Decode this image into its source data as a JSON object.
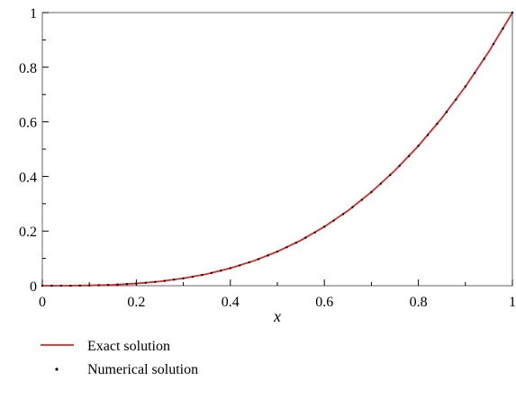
{
  "chart_data": {
    "type": "line",
    "title": "",
    "xlabel": "x",
    "ylabel": "",
    "xlim": [
      0,
      1
    ],
    "ylim": [
      0,
      1
    ],
    "grid": false,
    "legend_position": "bottom-left",
    "x_ticks": [
      "0",
      "0.2",
      "0.4",
      "0.6",
      "0.8",
      "1"
    ],
    "y_ticks": [
      "0",
      "0.2",
      "0.4",
      "0.6",
      "0.8",
      "1"
    ],
    "series": [
      {
        "name": "Exact solution",
        "style": "line",
        "color": "#d62728",
        "x": [
          0,
          0.05,
          0.1,
          0.15,
          0.2,
          0.25,
          0.3,
          0.35,
          0.4,
          0.45,
          0.5,
          0.55,
          0.6,
          0.65,
          0.7,
          0.75,
          0.8,
          0.85,
          0.9,
          0.95,
          1
        ],
        "y": [
          0,
          0.0001,
          0.001,
          0.0034,
          0.008,
          0.0156,
          0.027,
          0.0429,
          0.064,
          0.0911,
          0.125,
          0.1664,
          0.216,
          0.2746,
          0.343,
          0.4219,
          0.512,
          0.6141,
          0.729,
          0.8574,
          1
        ]
      },
      {
        "name": "Numerical solution",
        "style": "points",
        "color": "#000000",
        "x": [
          0,
          0.02,
          0.04,
          0.06,
          0.08,
          0.1,
          0.12,
          0.14,
          0.16,
          0.18,
          0.2,
          0.22,
          0.24,
          0.26,
          0.28,
          0.3,
          0.32,
          0.34,
          0.36,
          0.38,
          0.4,
          0.42,
          0.44,
          0.46,
          0.48,
          0.5,
          0.52,
          0.54,
          0.56,
          0.58,
          0.6,
          0.62,
          0.64,
          0.66,
          0.68,
          0.7,
          0.72,
          0.74,
          0.76,
          0.78,
          0.8,
          0.82,
          0.84,
          0.86,
          0.88,
          0.9,
          0.92,
          0.94,
          0.96,
          0.98,
          1
        ],
        "y": [
          0,
          0.0,
          0.0001,
          0.0002,
          0.0005,
          0.001,
          0.0017,
          0.0027,
          0.0041,
          0.0058,
          0.008,
          0.0106,
          0.0138,
          0.0176,
          0.022,
          0.027,
          0.0328,
          0.0393,
          0.0467,
          0.0549,
          0.064,
          0.0741,
          0.0852,
          0.0973,
          0.1106,
          0.125,
          0.1406,
          0.1575,
          0.1756,
          0.1951,
          0.216,
          0.2383,
          0.2621,
          0.2875,
          0.3144,
          0.343,
          0.3732,
          0.4052,
          0.439,
          0.4746,
          0.512,
          0.5514,
          0.5927,
          0.636,
          0.6815,
          0.729,
          0.7787,
          0.8306,
          0.8847,
          0.9412,
          1
        ]
      }
    ]
  }
}
